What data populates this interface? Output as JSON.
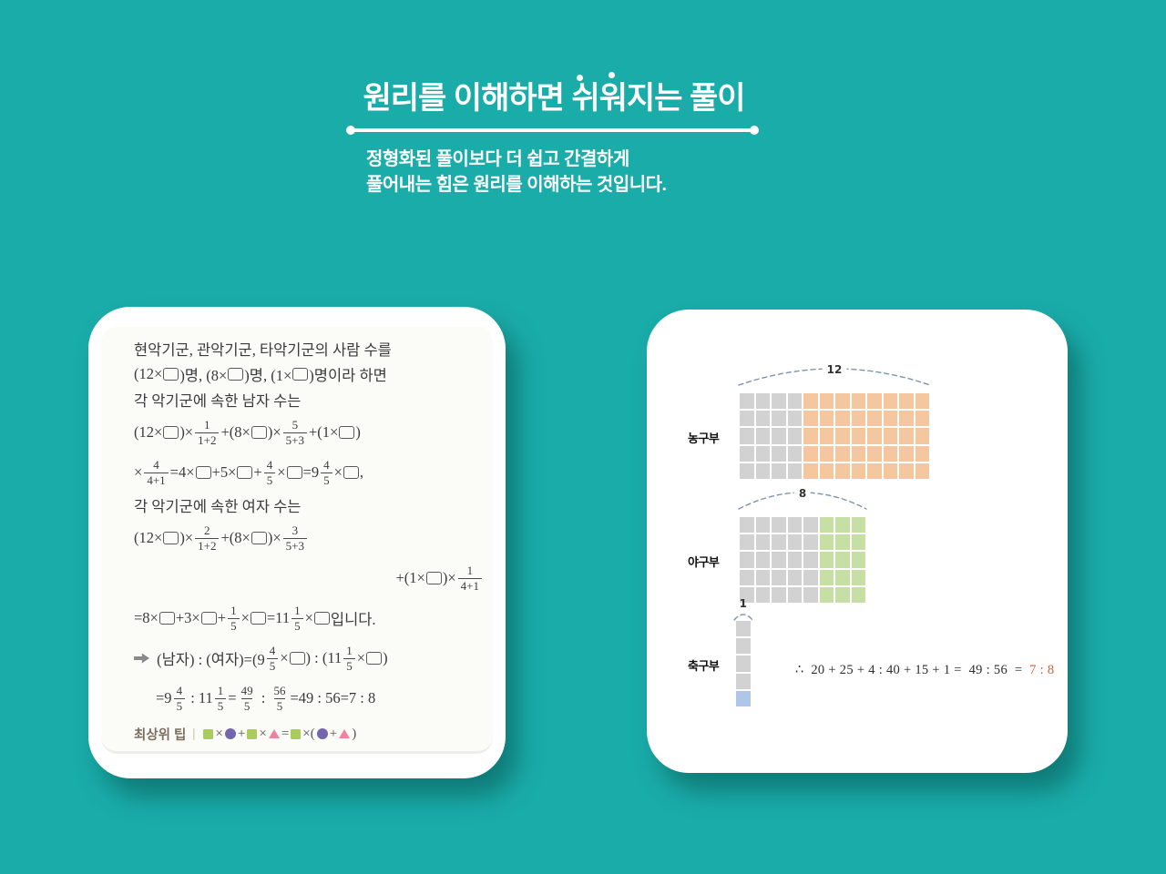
{
  "header": {
    "title": "원리를 이해하면 쉬워지는 풀이",
    "subtitle_line1": "정형화된 풀이보다 더 쉽고 간결하게",
    "subtitle_line2": "풀어내는 힘은 원리를 이해하는 것입니다."
  },
  "colors": {
    "background": "#1AACA9",
    "card": "#FFFFFF",
    "title_text": "#FFFFFF",
    "gray_cell": "#D2D2D2",
    "orange_cell": "#F4C7A0",
    "green_cell": "#C6DFA5",
    "blue_cell": "#AEC7E9",
    "brace_dash": "#7D93B3",
    "ratio_red": "#D95B35",
    "tip_square": "#A9CC5B",
    "tip_circle": "#7466AE",
    "tip_triangle": "#EE82A2"
  },
  "solution_card": {
    "lines": [
      {
        "tokens": [
          {
            "t": "txt",
            "v": "현악기군, 관악기군, 타악기군의 사람 수를"
          }
        ]
      },
      {
        "tokens": [
          {
            "t": "txt",
            "v": "(12×□)명, (8×□)명, (1×□)명이라 하면"
          }
        ]
      },
      {
        "tokens": [
          {
            "t": "txt",
            "v": "각 악기군에 속한 남자 수는"
          }
        ]
      },
      {
        "tokens": [
          {
            "t": "txt",
            "v": "(12×□)×"
          },
          {
            "t": "frac",
            "n": "1",
            "d": "1+2"
          },
          {
            "t": "txt",
            "v": "+(8×□)×"
          },
          {
            "t": "frac",
            "n": "5",
            "d": "5+3"
          },
          {
            "t": "txt",
            "v": "+(1×□)"
          }
        ]
      },
      {
        "tokens": [
          {
            "t": "txt",
            "v": "×"
          },
          {
            "t": "frac",
            "n": "4",
            "d": "4+1"
          },
          {
            "t": "txt",
            "v": "=4×□+5×□+"
          },
          {
            "t": "frac",
            "n": "4",
            "d": "5"
          },
          {
            "t": "txt",
            "v": "×□=9"
          },
          {
            "t": "frac",
            "n": "4",
            "d": "5"
          },
          {
            "t": "txt",
            "v": "×□,"
          }
        ]
      },
      {
        "tokens": [
          {
            "t": "txt",
            "v": "각 악기군에 속한 여자 수는"
          }
        ]
      },
      {
        "tokens": [
          {
            "t": "txt",
            "v": "(12×□)×"
          },
          {
            "t": "frac",
            "n": "2",
            "d": "1+2"
          },
          {
            "t": "txt",
            "v": "+(8×□)×"
          },
          {
            "t": "frac",
            "n": "3",
            "d": "5+3"
          }
        ]
      },
      {
        "align": "right",
        "tokens": [
          {
            "t": "txt",
            "v": "+(1×□)×"
          },
          {
            "t": "frac",
            "n": "1",
            "d": "4+1"
          }
        ]
      },
      {
        "tokens": [
          {
            "t": "txt",
            "v": "=8×□+3×□+"
          },
          {
            "t": "frac",
            "n": "1",
            "d": "5"
          },
          {
            "t": "txt",
            "v": "×□=11"
          },
          {
            "t": "frac",
            "n": "1",
            "d": "5"
          },
          {
            "t": "txt",
            "v": "×□입니다."
          }
        ]
      },
      {
        "tokens": [
          {
            "t": "arrow"
          },
          {
            "t": "txt",
            "v": " (남자) : (여자)=(9"
          },
          {
            "t": "frac",
            "n": "4",
            "d": "5"
          },
          {
            "t": "txt",
            "v": "×□) : (11"
          },
          {
            "t": "frac",
            "n": "1",
            "d": "5"
          },
          {
            "t": "txt",
            "v": "×□)"
          }
        ]
      },
      {
        "indent": true,
        "tokens": [
          {
            "t": "txt",
            "v": "=9"
          },
          {
            "t": "frac",
            "n": "4",
            "d": "5"
          },
          {
            "t": "txt",
            "v": " : 11"
          },
          {
            "t": "frac",
            "n": "1",
            "d": "5"
          },
          {
            "t": "txt",
            "v": "="
          },
          {
            "t": "frac",
            "n": "49",
            "d": "5"
          },
          {
            "t": "txt",
            "v": " : "
          },
          {
            "t": "frac",
            "n": "56",
            "d": "5"
          },
          {
            "t": "txt",
            "v": "=49 : 56=7 : 8"
          }
        ]
      }
    ],
    "tip": {
      "label": "최상위 팁",
      "separator": "|",
      "tokens": [
        {
          "t": "shape",
          "v": "square"
        },
        {
          "t": "txt",
          "v": "×"
        },
        {
          "t": "shape",
          "v": "circle"
        },
        {
          "t": "txt",
          "v": "+"
        },
        {
          "t": "shape",
          "v": "square"
        },
        {
          "t": "txt",
          "v": "×"
        },
        {
          "t": "shape",
          "v": "triangle"
        },
        {
          "t": "txt",
          "v": "="
        },
        {
          "t": "shape",
          "v": "square"
        },
        {
          "t": "txt",
          "v": "×("
        },
        {
          "t": "shape",
          "v": "circle"
        },
        {
          "t": "txt",
          "v": "+"
        },
        {
          "t": "shape",
          "v": "triangle"
        },
        {
          "t": "txt",
          "v": ")"
        }
      ]
    }
  },
  "diagram_card": {
    "groups": [
      {
        "name": "basketball",
        "label": "농구부",
        "brace_label": "12",
        "cols": 12,
        "rows": 5,
        "gray_count": 4,
        "highlight_axis": "col",
        "highlight_color_key": "orange_cell"
      },
      {
        "name": "baseball",
        "label": "야구부",
        "brace_label": "8",
        "cols": 8,
        "rows": 5,
        "gray_count": 5,
        "highlight_axis": "col",
        "highlight_color_key": "green_cell"
      },
      {
        "name": "soccer",
        "label": "축구부",
        "brace_label": "1",
        "cols": 1,
        "rows": 5,
        "gray_count": 4,
        "highlight_axis": "row",
        "highlight_color_key": "blue_cell"
      }
    ],
    "conclusion": {
      "black_part": "∴  20 + 25 + 4 : 40 + 15 + 1 =  49 : 56  =  ",
      "red_part": "7 : 8"
    }
  }
}
